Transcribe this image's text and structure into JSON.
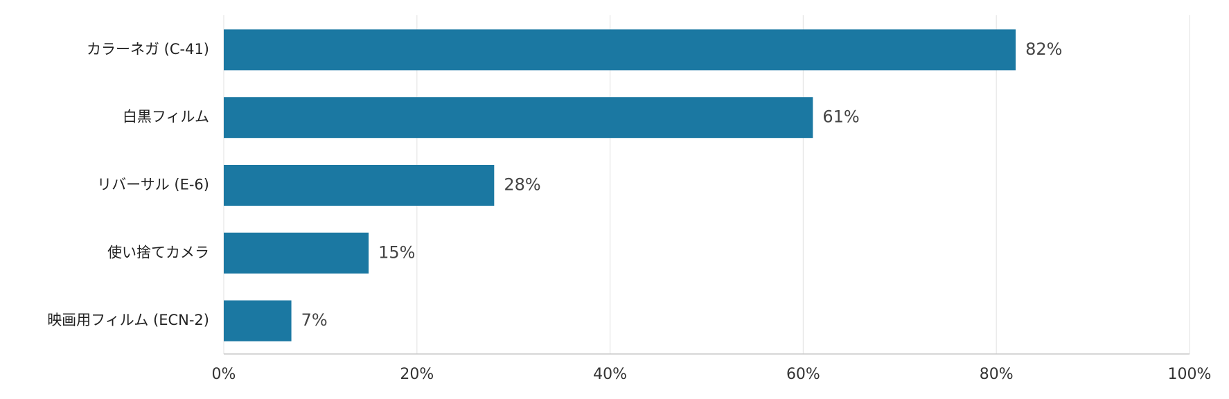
{
  "chart_data": {
    "type": "bar",
    "orientation": "horizontal",
    "categories": [
      "カラーネガ (C-41)",
      "白黒フィルム",
      "リバーサル (E-6)",
      "使い捨てカメラ",
      "映画用フィルム (ECN-2)"
    ],
    "values": [
      82,
      61,
      28,
      15,
      7
    ],
    "value_labels": [
      "82%",
      "61%",
      "28%",
      "15%",
      "7%"
    ],
    "color": "#1b78a2",
    "xlim": [
      0,
      100
    ],
    "xticks": [
      {
        "value": 0,
        "label": "0%"
      },
      {
        "value": 20,
        "label": "20%"
      },
      {
        "value": 40,
        "label": "40%"
      },
      {
        "value": 60,
        "label": "60%"
      },
      {
        "value": 80,
        "label": "80%"
      },
      {
        "value": 100,
        "label": "100%"
      }
    ],
    "grid": true
  }
}
